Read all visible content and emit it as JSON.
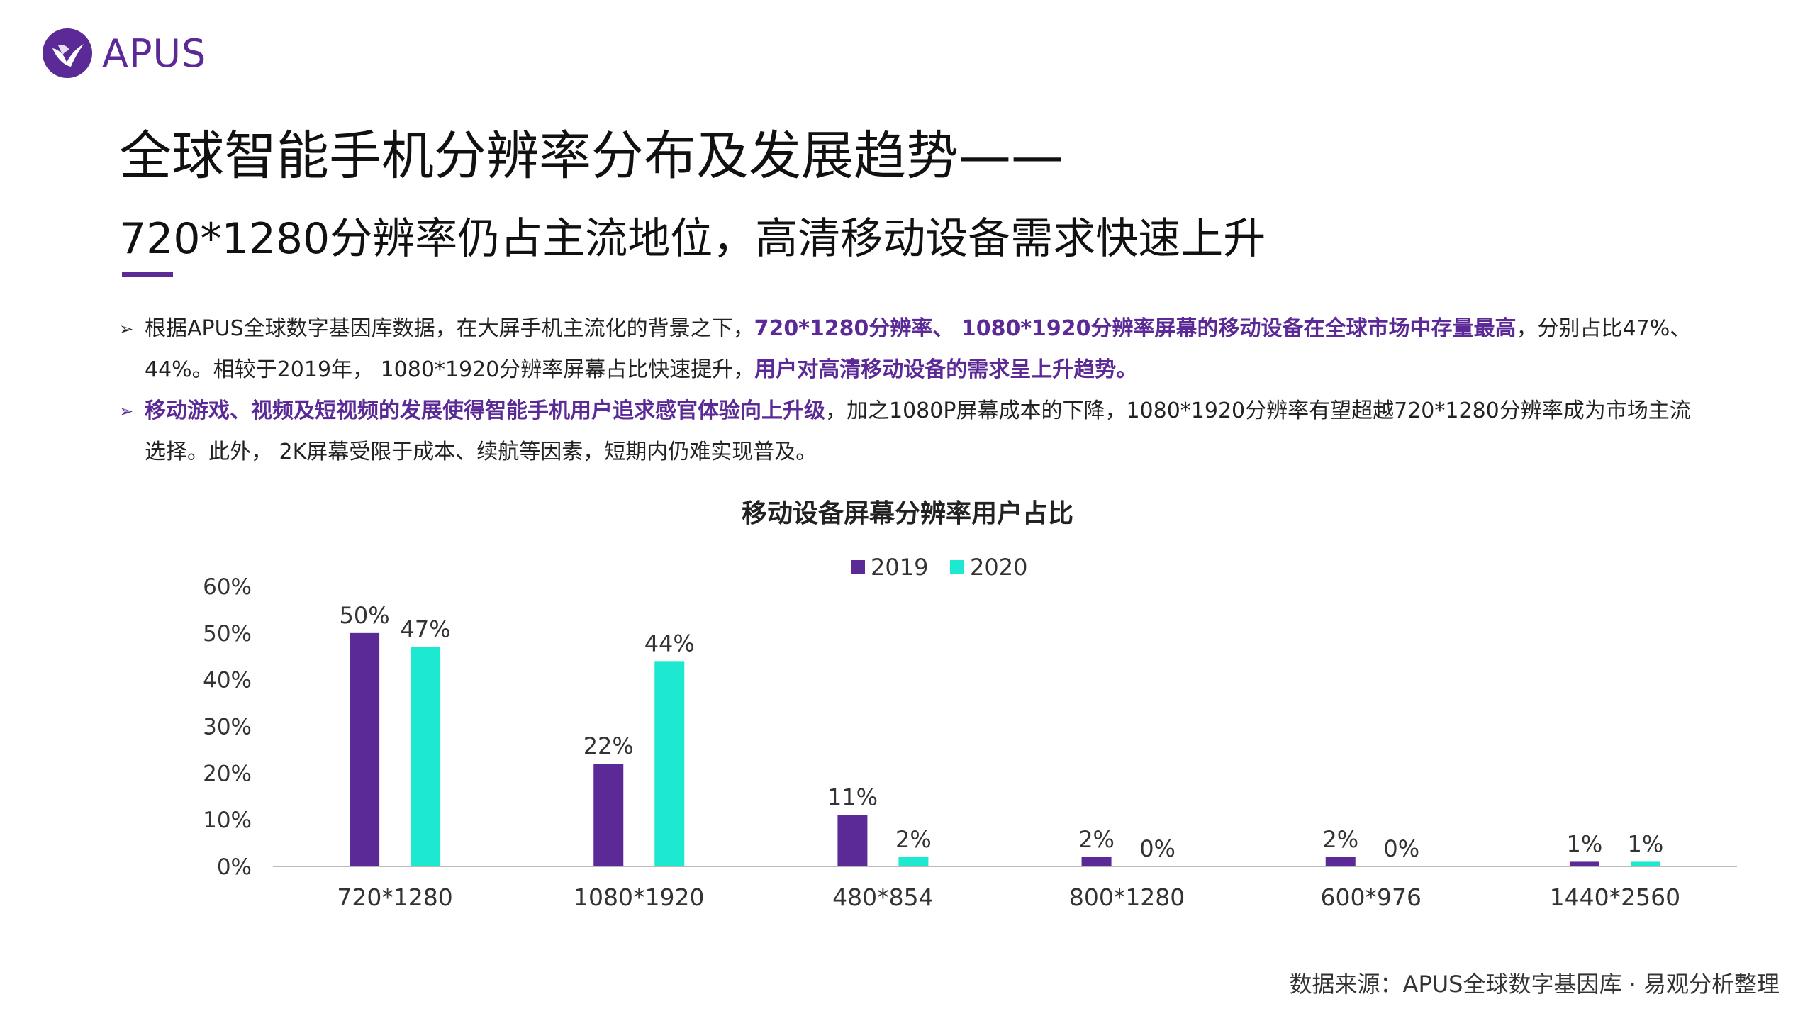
{
  "logo": {
    "text": "APUS"
  },
  "title": {
    "line1": "全球智能手机分辨率分布及发展趋势——",
    "line2": "720*1280分辨率仍占主流地位，高清移动设备需求快速上升"
  },
  "bullets": [
    {
      "arrow": "➢",
      "a": "根据APUS全球数字基因库数据，在大屏手机主流化的背景之下，",
      "b": "720*1280分辨率、 1080*1920分辨率屏幕的移动设备在全球市场中存量最高",
      "c": "，分别占比47%、44%。相较于2019年， 1080*1920分辨率屏幕占比快速提升，",
      "d": "用户对高清移动设备的需求呈上升趋势。"
    },
    {
      "arrow": "➢",
      "a": "移动游戏、视频及短视频的发展使得智能手机用户追求感官体验向上升级",
      "b": "，加之1080P屏幕成本的下降，1080*1920分辨率有望超越720*1280分辨率成为市场主流选择。此外， 2K屏幕受限于成本、续航等因素，短期内仍难实现普及。"
    }
  ],
  "chart_data": {
    "type": "bar",
    "title": "移动设备屏幕分辨率用户占比",
    "categories": [
      "720*1280",
      "1080*1920",
      "480*854",
      "800*1280",
      "600*976",
      "1440*2560"
    ],
    "series": [
      {
        "name": "2019",
        "values": [
          50,
          22,
          11,
          2,
          2,
          1
        ],
        "labels": [
          "50%",
          "22%",
          "11%",
          "2%",
          "2%",
          "1%"
        ],
        "color": "#5b2a96"
      },
      {
        "name": "2020",
        "values": [
          47,
          44,
          2,
          0,
          0,
          1
        ],
        "labels": [
          "47%",
          "44%",
          "2%",
          "0%",
          "0%",
          "1%"
        ],
        "color": "#1de9d0"
      }
    ],
    "yticks": [
      "0%",
      "10%",
      "20%",
      "30%",
      "40%",
      "50%",
      "60%"
    ],
    "ylim": [
      0,
      60
    ],
    "legend": "top-center",
    "grid": false
  },
  "source": "数据来源：APUS全球数字基因库 · 易观分析整理",
  "colors": {
    "brand": "#5b2a96",
    "accent": "#1de9d0"
  }
}
